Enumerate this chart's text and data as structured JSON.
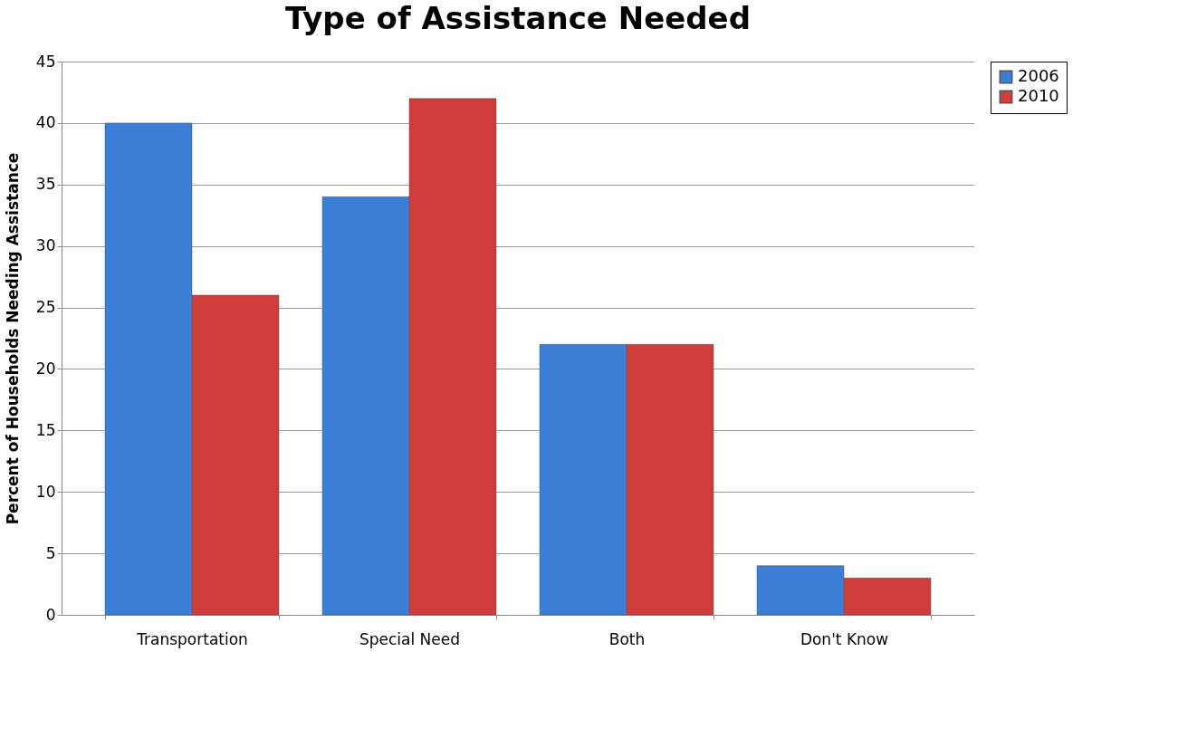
{
  "chart_data": {
    "type": "bar",
    "title": "Type of Assistance Needed",
    "ylabel": "Percent of Households Needing Assistance",
    "categories": [
      "Transportation",
      "Special Need",
      "Both",
      "Don't Know"
    ],
    "series": [
      {
        "name": "2006",
        "color": "#3a7fd5",
        "values": [
          40,
          34,
          22,
          4
        ]
      },
      {
        "name": "2010",
        "color": "#d03c3c",
        "values": [
          26,
          42,
          22,
          3
        ]
      }
    ],
    "ylim": [
      0,
      45
    ],
    "yticks": [
      0,
      5,
      10,
      15,
      20,
      25,
      30,
      35,
      40,
      45
    ],
    "grid": "y",
    "legend": "right"
  }
}
